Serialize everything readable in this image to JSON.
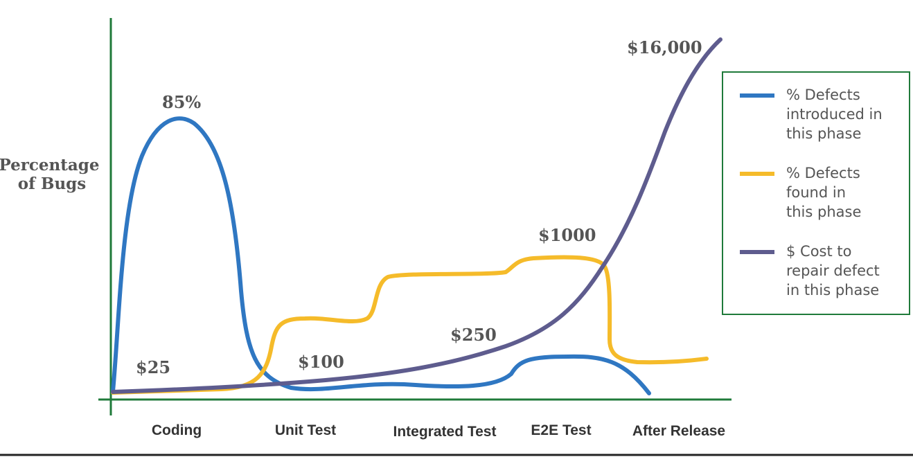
{
  "chart_data": {
    "type": "line",
    "ylabel": [
      "Percentage",
      "of Bugs"
    ],
    "categories": [
      "Coding",
      "Unit Test",
      "Integrated Test",
      "E2E Test",
      "After Release"
    ],
    "annotations": [
      "85%",
      "$25",
      "$100",
      "$250",
      "$1000",
      "$16,000"
    ],
    "series": [
      {
        "name": [
          "% Defects",
          "introduced in",
          "this phase"
        ],
        "color": "#2f77c2"
      },
      {
        "name": [
          "% Defects",
          "found in",
          "this phase"
        ],
        "color": "#f5bb2a"
      },
      {
        "name": [
          "$ Cost to",
          "repair defect",
          "in this phase"
        ],
        "color": "#5e5c8e"
      }
    ],
    "grid": false,
    "legend_position": "right"
  }
}
